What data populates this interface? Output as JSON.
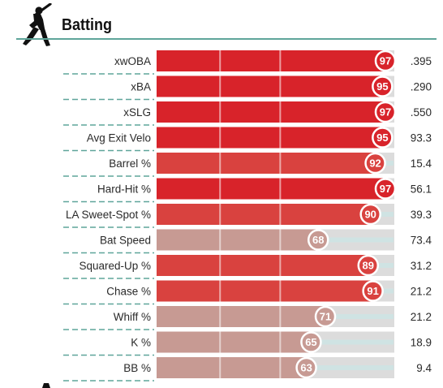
{
  "section": {
    "title": "Batting",
    "icon": "batter-silhouette-icon"
  },
  "colors": {
    "header_rule": "#5fa59a",
    "bar_track": "#dcdcdc",
    "label_divider": "#5fa59a",
    "percentile_high": "#d8232a",
    "percentile_mid": "#d9423f",
    "percentile_low": "#c79a93",
    "raw_value_track": "#cfe3e3"
  },
  "chart_data": {
    "type": "bar",
    "orientation": "horizontal",
    "xlim": [
      0,
      100
    ],
    "grid": true,
    "categories": [
      "xwOBA",
      "xBA",
      "xSLG",
      "Avg Exit Velo",
      "Barrel %",
      "Hard-Hit %",
      "LA Sweet-Spot %",
      "Bat Speed",
      "Squared-Up %",
      "Chase %",
      "Whiff %",
      "K %",
      "BB %"
    ],
    "percentiles": [
      97,
      95,
      97,
      95,
      92,
      97,
      90,
      68,
      89,
      91,
      71,
      65,
      63
    ],
    "values": [
      ".395",
      ".290",
      ".550",
      "93.3",
      "15.4",
      "56.1",
      "39.3",
      "73.4",
      "31.2",
      "21.2",
      "21.2",
      "18.9",
      "9.4"
    ]
  }
}
